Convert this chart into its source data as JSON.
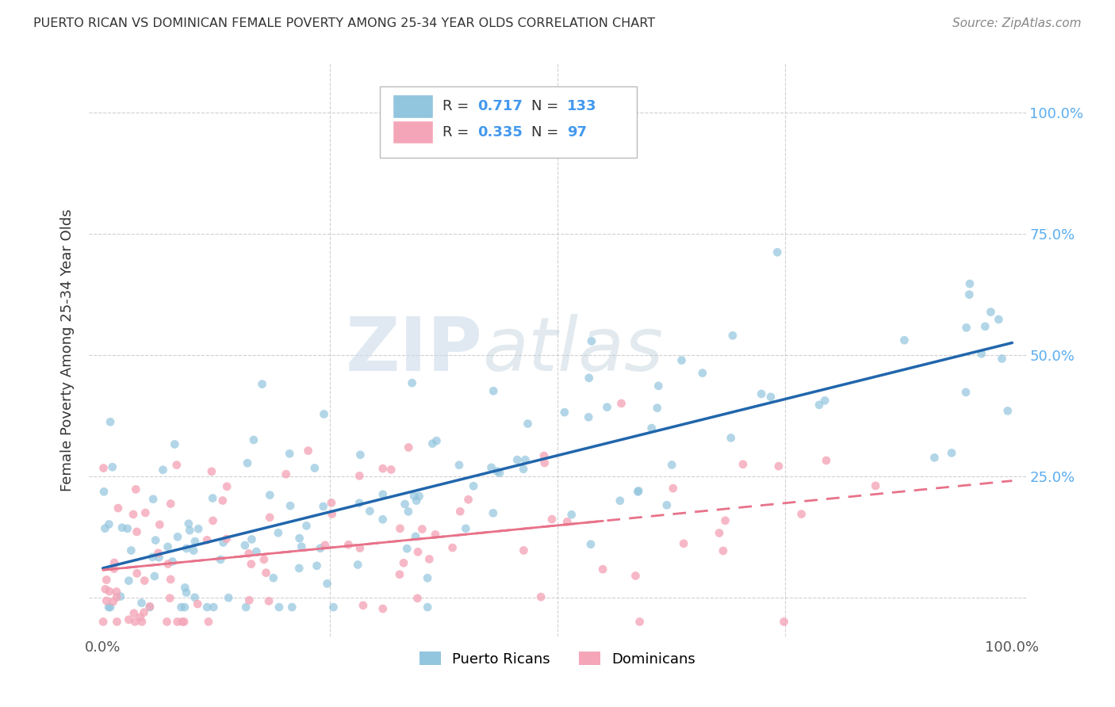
{
  "title": "PUERTO RICAN VS DOMINICAN FEMALE POVERTY AMONG 25-34 YEAR OLDS CORRELATION CHART",
  "source": "Source: ZipAtlas.com",
  "ylabel": "Female Poverty Among 25-34 Year Olds",
  "pr_color": "#92c5de",
  "dom_color": "#f4a6b8",
  "pr_line_color": "#2166ac",
  "dom_line_color": "#e8728a",
  "pr_R": 0.717,
  "pr_N": 133,
  "dom_R": 0.335,
  "dom_N": 97,
  "watermark_zip": "ZIP",
  "watermark_atlas": "atlas",
  "legend_pr_label": "Puerto Ricans",
  "legend_dom_label": "Dominicans",
  "background_color": "#ffffff",
  "grid_color": "#cccccc",
  "title_color": "#333333",
  "tick_color_right": "#5badf0",
  "legend_text_color": "#333333",
  "legend_value_color": "#4499ee"
}
